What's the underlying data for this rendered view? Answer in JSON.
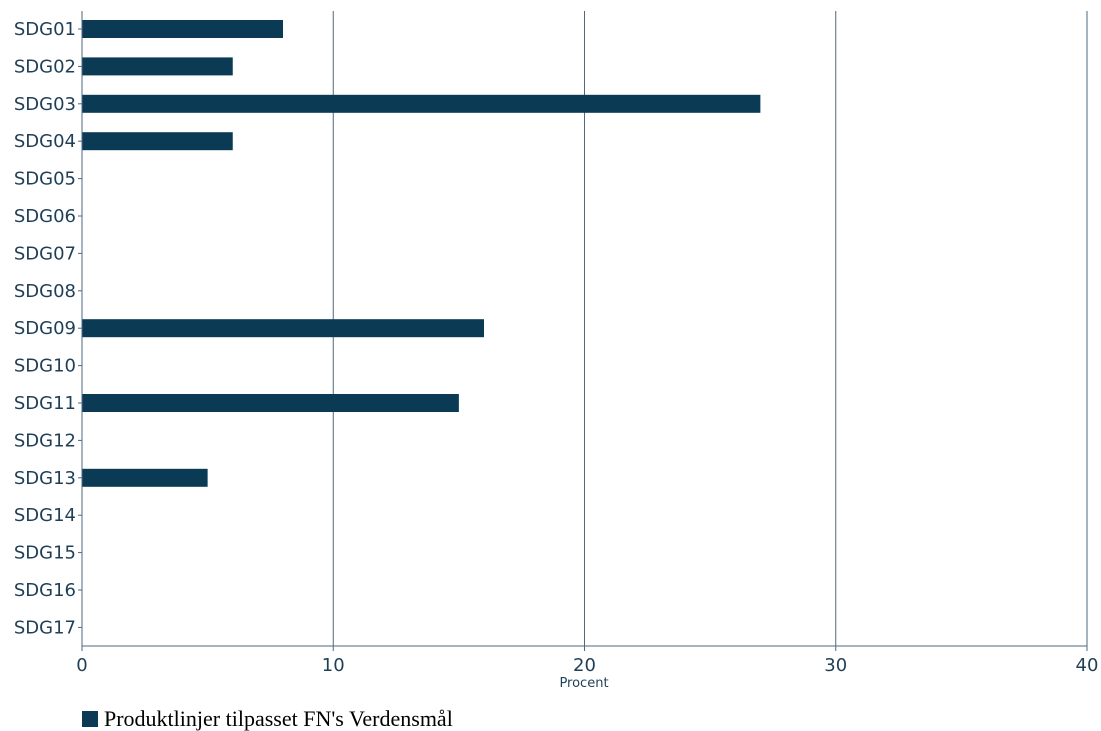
{
  "chart_data": {
    "type": "bar",
    "orientation": "horizontal",
    "categories": [
      "SDG01",
      "SDG02",
      "SDG03",
      "SDG04",
      "SDG05",
      "SDG06",
      "SDG07",
      "SDG08",
      "SDG09",
      "SDG10",
      "SDG11",
      "SDG12",
      "SDG13",
      "SDG14",
      "SDG15",
      "SDG16",
      "SDG17"
    ],
    "series": [
      {
        "name": "Produktlinjer tilpasset FN's Verdensmål",
        "values": [
          8,
          6,
          27,
          6,
          0,
          0,
          0,
          0,
          16,
          0,
          15,
          0,
          5,
          0,
          0,
          0,
          0
        ]
      }
    ],
    "xlabel": "Procent",
    "ylabel": "",
    "xlim": [
      0,
      40
    ],
    "xticks": [
      0,
      10,
      20,
      30,
      40
    ],
    "grid": "vertical",
    "legend_position": "bottom-left"
  },
  "colors": {
    "bar": "#0b3a55",
    "axis_text": "#1f3f57",
    "grid": "#4d6a80"
  }
}
